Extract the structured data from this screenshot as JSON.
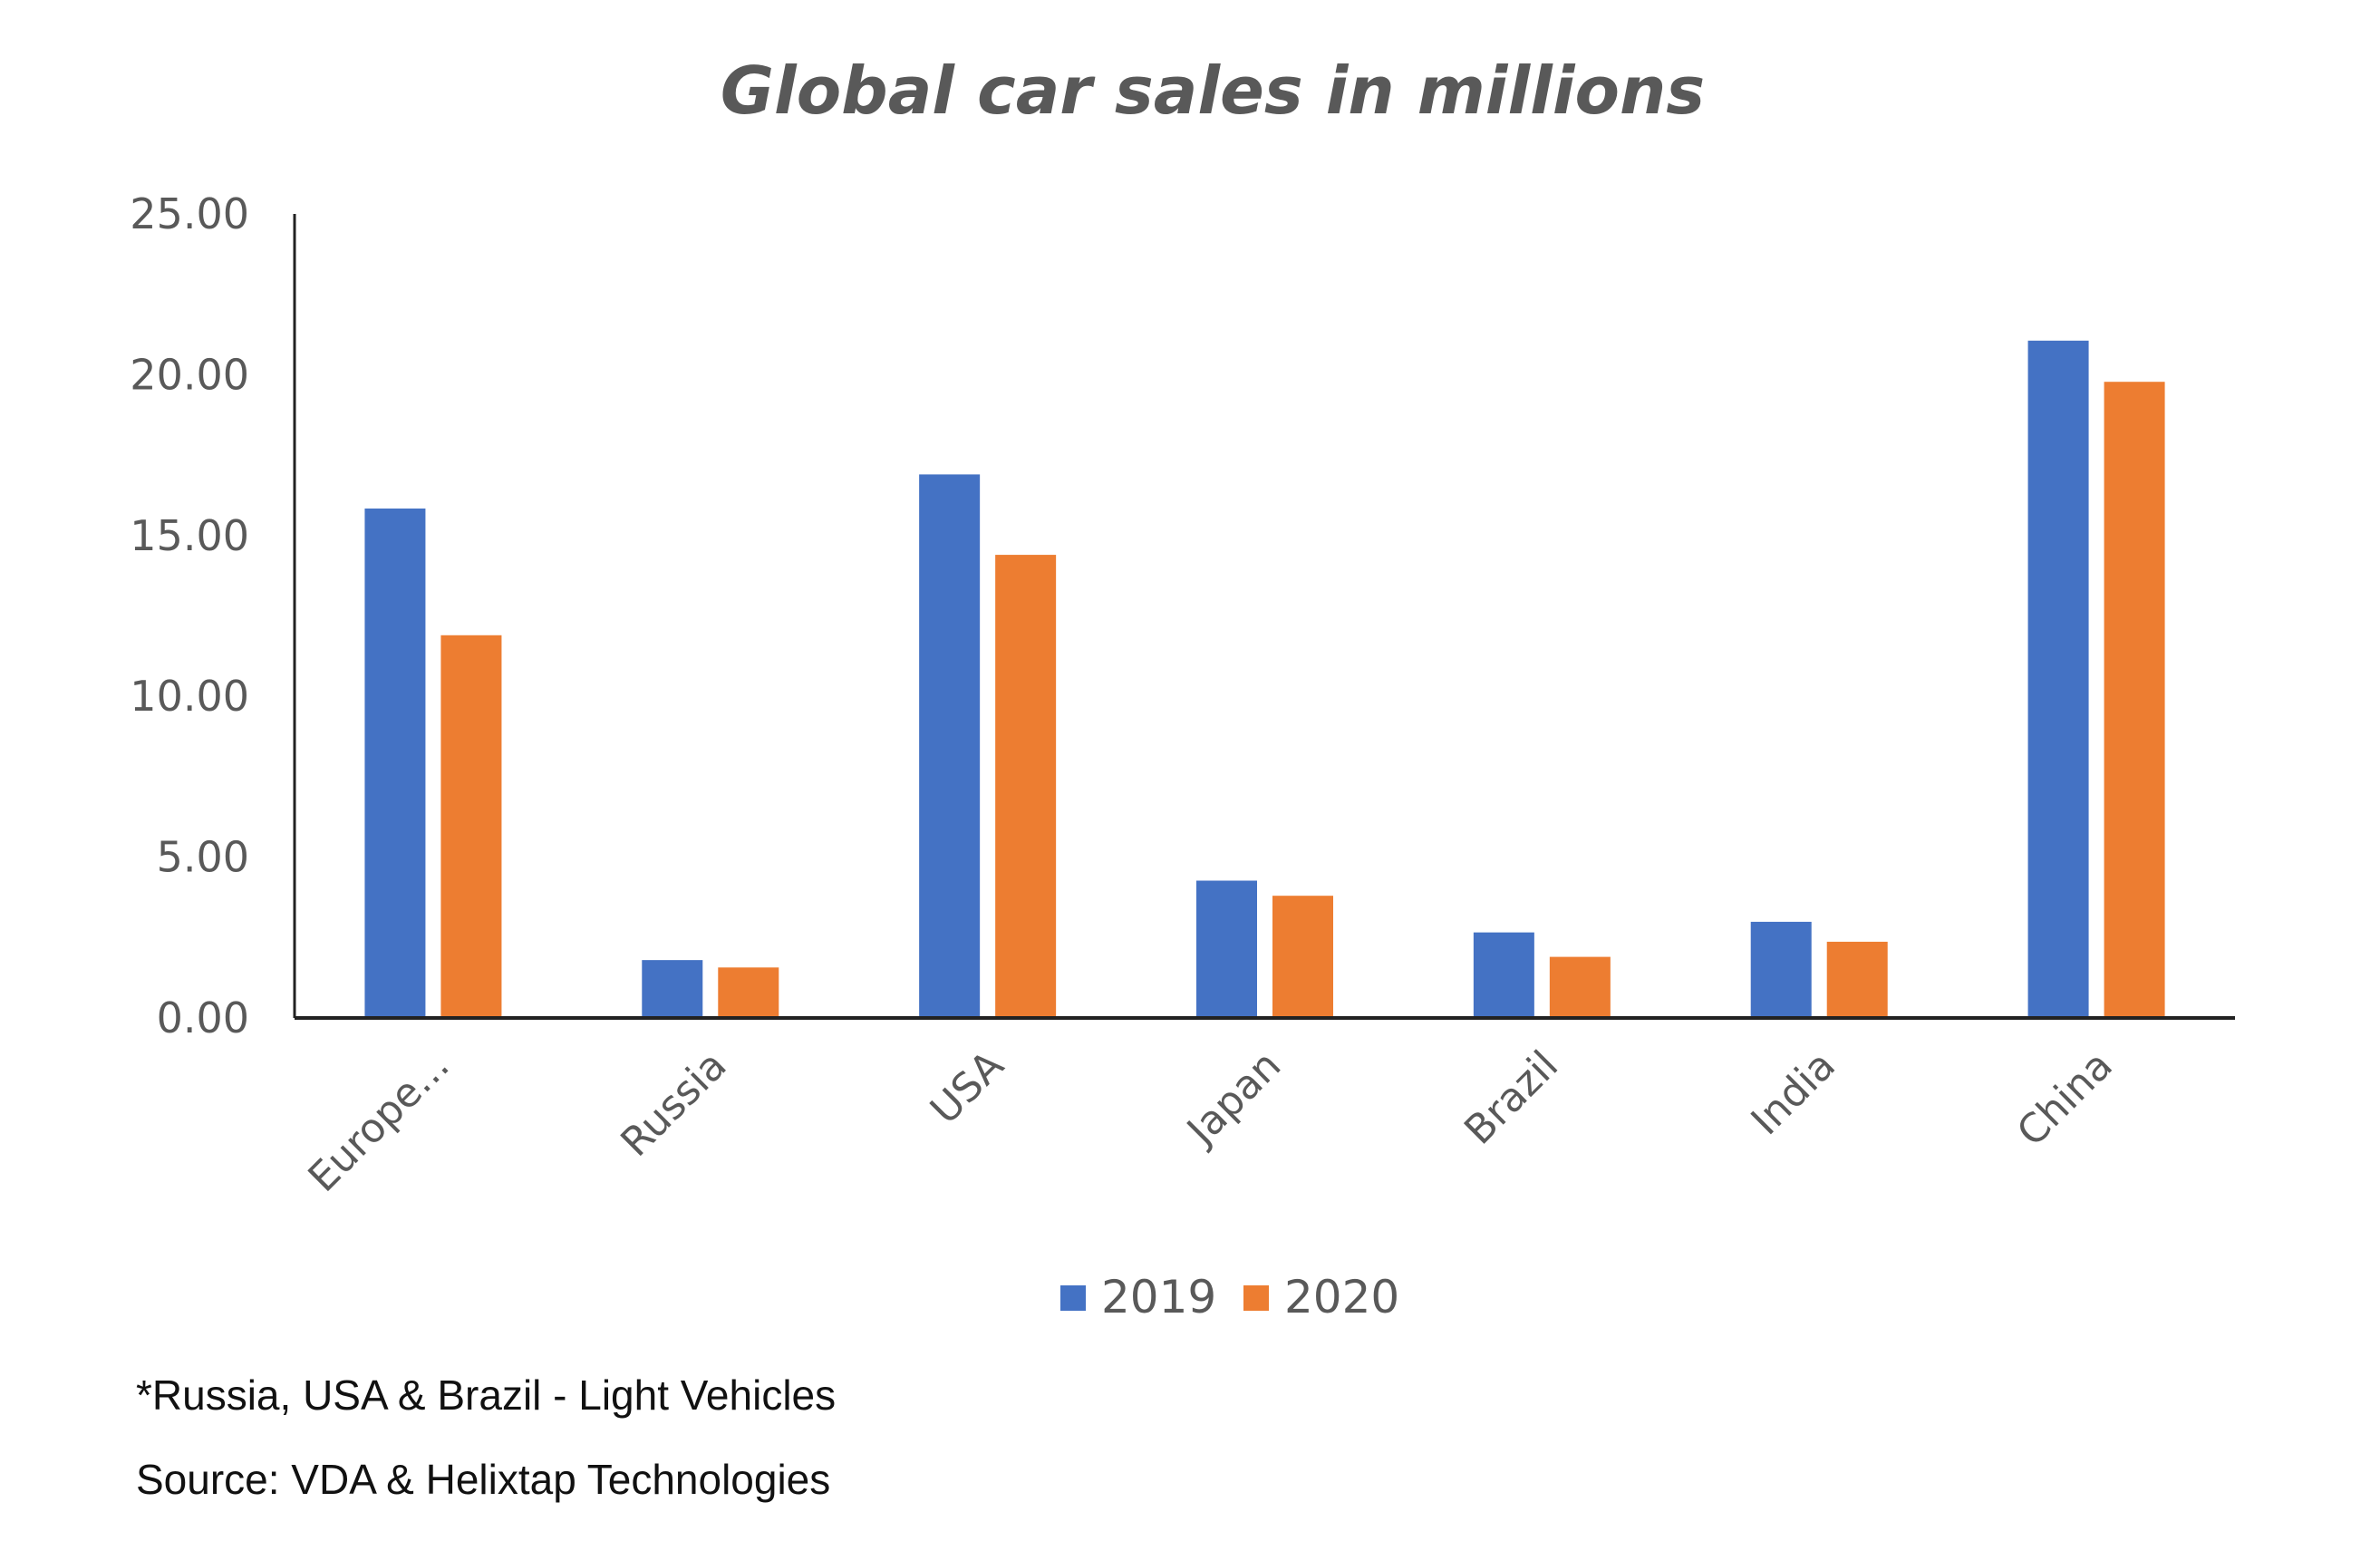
{
  "chart_data": {
    "type": "bar",
    "title": "Global car sales in millions",
    "xlabel": "",
    "ylabel": "",
    "ylim": [
      0,
      25
    ],
    "yticks": [
      "0.00",
      "5.00",
      "10.00",
      "15.00",
      "20.00",
      "25.00"
    ],
    "categories": [
      "Europe...",
      "Russia",
      "USA",
      "Japan",
      "Brazil",
      "India",
      "China"
    ],
    "series": [
      {
        "name": "2019",
        "color": "#4472C4",
        "values": [
          15.84,
          1.8,
          16.9,
          4.27,
          2.66,
          2.99,
          21.06
        ]
      },
      {
        "name": "2020",
        "color": "#ED7D31",
        "values": [
          11.9,
          1.57,
          14.4,
          3.8,
          1.9,
          2.37,
          19.78
        ]
      }
    ],
    "grid": false,
    "legend": "bottom"
  },
  "notes": {
    "footnote": "*Russia, USA & Brazil - Light Vehicles",
    "source": "Source: VDA & Helixtap Technologies"
  }
}
